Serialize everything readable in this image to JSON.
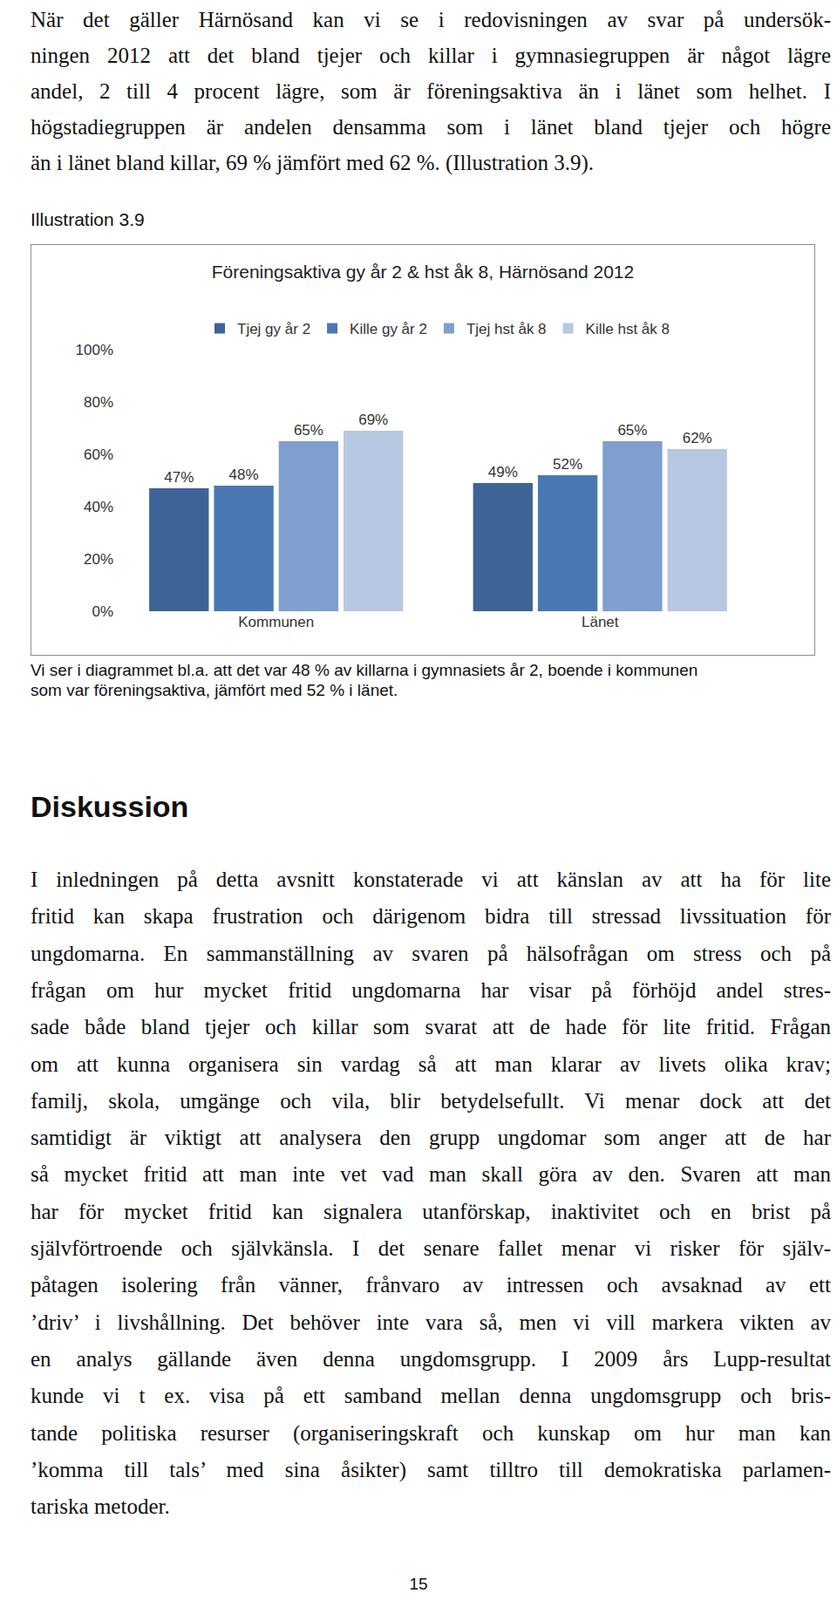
{
  "intro_lines": [
    "När det gäller Härnösand kan vi se i redovisningen av svar på undersök-",
    "ningen 2012 att det bland tjejer och killar i gymnasiegruppen är något lägre",
    "andel, 2 till 4 procent lägre, som är föreningsaktiva än i länet som helhet. I",
    "högstadiegruppen är andelen densamma som i länet bland tjejer och högre",
    "än i länet bland killar, 69 % jämfört med 62 %. (Illustration 3.9)."
  ],
  "illustration_label": "Illustration 3.9",
  "chart_data": {
    "type": "bar",
    "title": "Föreningsaktiva gy år 2 & hst åk 8, Härnösand 2012",
    "categories": [
      "Kommunen",
      "Länet"
    ],
    "series": [
      {
        "name": "Tjej gy år 2",
        "color": "#3e6397",
        "values": [
          47,
          49
        ],
        "value_labels": [
          "47%",
          "49%"
        ]
      },
      {
        "name": "Kille gy år 2",
        "color": "#4978b5",
        "values": [
          48,
          52
        ],
        "value_labels": [
          "48%",
          "52%"
        ]
      },
      {
        "name": "Tjej hst åk 8",
        "color": "#7f9fcf",
        "values": [
          65,
          65
        ],
        "value_labels": [
          "65%",
          "65%"
        ]
      },
      {
        "name": "Kille hst åk 8",
        "color": "#b7c8e2",
        "values": [
          69,
          62
        ],
        "value_labels": [
          "69%",
          "62%"
        ]
      }
    ],
    "ylim": [
      0,
      100
    ],
    "yticks": [
      {
        "value": 0,
        "label": "0%"
      },
      {
        "value": 20,
        "label": "20%"
      },
      {
        "value": 40,
        "label": "40%"
      },
      {
        "value": 60,
        "label": "60%"
      },
      {
        "value": 80,
        "label": "80%"
      },
      {
        "value": 100,
        "label": "100%"
      }
    ],
    "grid": false,
    "legend": "top",
    "data_labels": true
  },
  "caption_lines": [
    "Vi ser i diagrammet bl.a. att det var 48 % av killarna i gymnasiets år 2, boende  i kommunen",
    "som var föreningsaktiva, jämfört med 52 % i länet."
  ],
  "heading": "Diskussion",
  "discussion_lines": [
    "I inledningen på detta avsnitt konstaterade vi att känslan av att ha för lite",
    "fritid kan skapa frustration och därigenom bidra till stressad livssituation för",
    "ungdomarna. En sammanställning av svaren på hälsofrågan om stress och på",
    "frågan om hur mycket fritid ungdomarna har visar på förhöjd andel stres-",
    "sade både bland tjejer och killar som svarat att de hade för lite fritid. Frågan",
    "om att kunna organisera sin vardag så att man klarar av livets olika krav;",
    "familj, skola, umgänge och vila, blir betydelsefullt. Vi menar dock att det",
    "samtidigt är viktigt att analysera den grupp ungdomar som anger att de har",
    "så mycket fritid att man inte vet vad man skall göra av den. Svaren att man",
    "har för mycket fritid kan signalera utanförskap, inaktivitet och en brist på",
    "självförtroende och självkänsla. I det senare fallet menar vi risker för själv-",
    "påtagen isolering från vänner, frånvaro av intressen och avsaknad av ett",
    "’driv’ i livshållning. Det behöver inte vara så, men vi vill markera vikten av",
    "en analys gällande även denna ungdomsgrupp. I 2009 års Lupp-resultat",
    "kunde vi t ex. visa på ett samband mellan denna ungdomsgrupp och bris-",
    "tande politiska resurser (organiseringskraft och kunskap om hur man kan",
    "’komma till tals’ med sina åsikter) samt tilltro till demokratiska parlamen-",
    "tariska metoder."
  ],
  "page_number": 15
}
